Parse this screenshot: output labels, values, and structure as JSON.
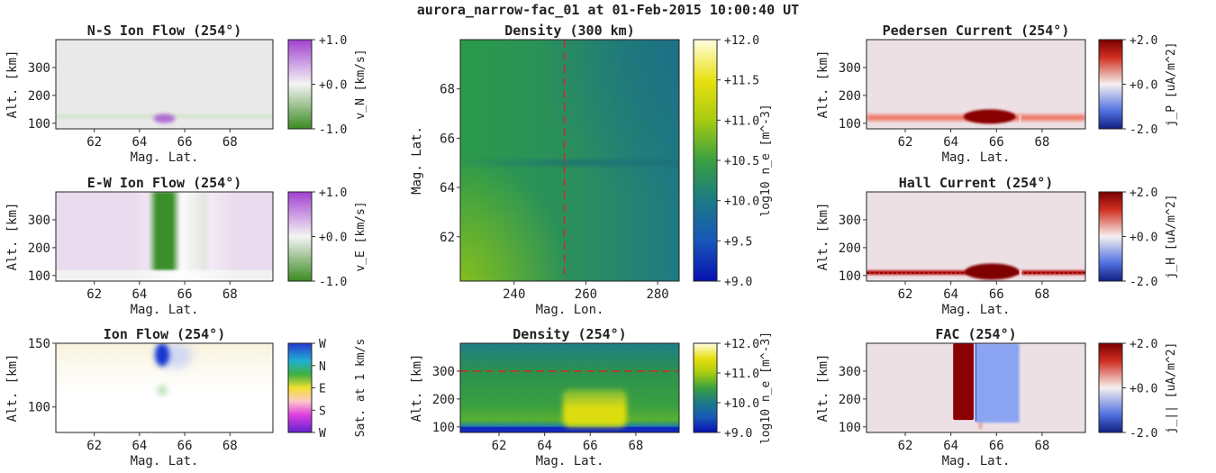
{
  "suptitle": "aurora_narrow-fac_01 at 01-Feb-2015 10:00:40 UT",
  "colors": {
    "green": "#3a8f2a",
    "purple": "#a040d0",
    "bg_grey": "#e9e9e9",
    "dens_base": "#2f8f4a",
    "dens_yellow": "#e8e010",
    "dens_blue": "#1030c0",
    "red": "#990000",
    "blue": "#2040c0",
    "pink_bg": "#ede0e4"
  },
  "chart_data": [
    {
      "id": "ns",
      "type": "heatmap",
      "title": "N-S Ion Flow (254°)",
      "xlabel": "Mag. Lat.",
      "ylabel": "Alt. [km]",
      "xticks": [
        "62",
        "64",
        "66",
        "68"
      ],
      "yticks": [
        "100",
        "200",
        "300"
      ],
      "xlim": [
        60.3,
        69.9
      ],
      "ylim": [
        80,
        400
      ],
      "colorbar": {
        "ticks": [
          "+1.0",
          "+0.0",
          "-1.0"
        ],
        "label": "v_N [km/s]"
      }
    },
    {
      "id": "ew",
      "type": "heatmap",
      "title": "E-W Ion Flow (254°)",
      "xlabel": "Mag. Lat.",
      "ylabel": "Alt. [km]",
      "xticks": [
        "62",
        "64",
        "66",
        "68"
      ],
      "yticks": [
        "100",
        "200",
        "300"
      ],
      "xlim": [
        60.3,
        69.9
      ],
      "ylim": [
        80,
        400
      ],
      "colorbar": {
        "ticks": [
          "+1.0",
          "+0.0",
          "-1.0"
        ],
        "label": "v_E [km/s]"
      }
    },
    {
      "id": "ionflow",
      "type": "heatmap",
      "title": "Ion Flow (254°)",
      "xlabel": "Mag. Lat.",
      "ylabel": "Alt. [km]",
      "xticks": [
        "62",
        "64",
        "66",
        "68"
      ],
      "yticks": [
        "100",
        "150"
      ],
      "xlim": [
        60.3,
        69.9
      ],
      "ylim": [
        80,
        150
      ],
      "colorbar": {
        "ticks": [
          "W",
          "N",
          "E",
          "S",
          "W"
        ],
        "label": "Sat. at 1 km/s"
      }
    },
    {
      "id": "dmap",
      "type": "heatmap",
      "title": "Density (300 km)",
      "xlabel": "Mag. Lon.",
      "ylabel": "Mag. Lat.",
      "xticks": [
        "240",
        "260",
        "280"
      ],
      "yticks": [
        "62",
        "64",
        "66",
        "68"
      ],
      "xlim": [
        225,
        286
      ],
      "ylim": [
        60.2,
        70.0
      ],
      "marker_lon": 254,
      "colorbar": {
        "ticks": [
          "+12.0",
          "+11.5",
          "+11.0",
          "+10.5",
          "+10.0",
          "+9.5",
          "+9.0"
        ],
        "label": "log10 n_e [m^-3]"
      }
    },
    {
      "id": "dalt",
      "type": "heatmap",
      "title": "Density (254°)",
      "xlabel": "Mag. Lat.",
      "ylabel": "Alt. [km]",
      "xticks": [
        "62",
        "64",
        "66",
        "68"
      ],
      "yticks": [
        "100",
        "200",
        "300"
      ],
      "xlim": [
        60.3,
        69.9
      ],
      "ylim": [
        80,
        400
      ],
      "marker_alt": 300,
      "colorbar": {
        "ticks": [
          "+12.0",
          "+11.0",
          "+10.0",
          "+9.0"
        ],
        "label": "log10 n_e [m^-3]"
      }
    },
    {
      "id": "ped",
      "type": "heatmap",
      "title": "Pedersen Current (254°)",
      "xlabel": "Mag. Lat.",
      "ylabel": "Alt. [km]",
      "xticks": [
        "62",
        "64",
        "66",
        "68"
      ],
      "yticks": [
        "100",
        "200",
        "300"
      ],
      "xlim": [
        60.3,
        69.9
      ],
      "ylim": [
        80,
        400
      ],
      "colorbar": {
        "ticks": [
          "+2.0",
          "+0.0",
          "-2.0"
        ],
        "label": "j_P [uA/m^2]"
      }
    },
    {
      "id": "hall",
      "type": "heatmap",
      "title": "Hall Current (254°)",
      "xlabel": "Mag. Lat.",
      "ylabel": "Alt. [km]",
      "xticks": [
        "62",
        "64",
        "66",
        "68"
      ],
      "yticks": [
        "100",
        "200",
        "300"
      ],
      "xlim": [
        60.3,
        69.9
      ],
      "ylim": [
        80,
        400
      ],
      "colorbar": {
        "ticks": [
          "+2.0",
          "+0.0",
          "-2.0"
        ],
        "label": "j_H [uA/m^2]"
      }
    },
    {
      "id": "fac",
      "type": "heatmap",
      "title": "FAC (254°)",
      "xlabel": "Mag. Lat.",
      "ylabel": "Alt. [km]",
      "xticks": [
        "62",
        "64",
        "66",
        "68"
      ],
      "yticks": [
        "100",
        "200",
        "300"
      ],
      "xlim": [
        60.3,
        69.9
      ],
      "ylim": [
        80,
        400
      ],
      "colorbar": {
        "ticks": [
          "+2.0",
          "+0.0",
          "-2.0"
        ],
        "label": "j_|| [uA/m^2]"
      }
    }
  ]
}
